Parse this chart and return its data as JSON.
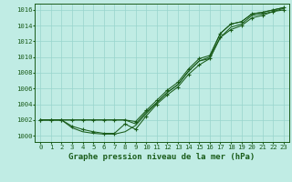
{
  "bg_color": "#c0ece4",
  "grid_color": "#98d4cc",
  "line_color": "#1a5c1a",
  "text_color": "#1a5c1a",
  "xlabel": "Graphe pression niveau de la mer (hPa)",
  "ylim": [
    999.2,
    1016.8
  ],
  "xlim": [
    -0.5,
    23.5
  ],
  "yticks": [
    1000,
    1002,
    1004,
    1006,
    1008,
    1010,
    1012,
    1014,
    1016
  ],
  "xticks": [
    0,
    1,
    2,
    3,
    4,
    5,
    6,
    7,
    8,
    9,
    10,
    11,
    12,
    13,
    14,
    15,
    16,
    17,
    18,
    19,
    20,
    21,
    22,
    23
  ],
  "series": [
    {
      "y": [
        1002,
        1002,
        1002,
        1002,
        1002,
        1002,
        1002,
        1002,
        1002,
        1001.5,
        1003,
        1004.2,
        1005.5,
        1006.5,
        1008.2,
        1009.5,
        1009.8,
        1012.5,
        1013.8,
        1014.2,
        1015.3,
        1015.5,
        1015.8,
        1016.2
      ],
      "marker": false
    },
    {
      "y": [
        1002,
        1002,
        1002,
        1002,
        1002,
        1002,
        1002,
        1002,
        1002,
        1001.8,
        1003.2,
        1004.5,
        1005.8,
        1006.8,
        1008.5,
        1009.8,
        1010.2,
        1013.0,
        1014.2,
        1014.5,
        1015.5,
        1015.7,
        1016.0,
        1016.3
      ],
      "marker": true
    },
    {
      "y": [
        1002,
        1002,
        1002,
        1001,
        1000.5,
        1000.3,
        1000.2,
        1000.2,
        1000.5,
        1001.3,
        1002.8,
        1004.2,
        1005.5,
        1006.5,
        1008.2,
        1009.5,
        1010.0,
        1013.0,
        1014.2,
        1014.5,
        1015.5,
        1015.7,
        1016.0,
        1016.3
      ],
      "marker": false
    },
    {
      "y": [
        1002,
        1002,
        1002,
        1001.2,
        1000.8,
        1000.5,
        1000.3,
        1000.3,
        1001.5,
        1000.8,
        1002.5,
        1004.0,
        1005.2,
        1006.2,
        1007.8,
        1009.0,
        1009.8,
        1012.5,
        1013.5,
        1014.0,
        1015.0,
        1015.3,
        1015.8,
        1016.0
      ],
      "marker": true
    }
  ],
  "tick_fontsize": 5.2,
  "label_fontsize": 6.5
}
